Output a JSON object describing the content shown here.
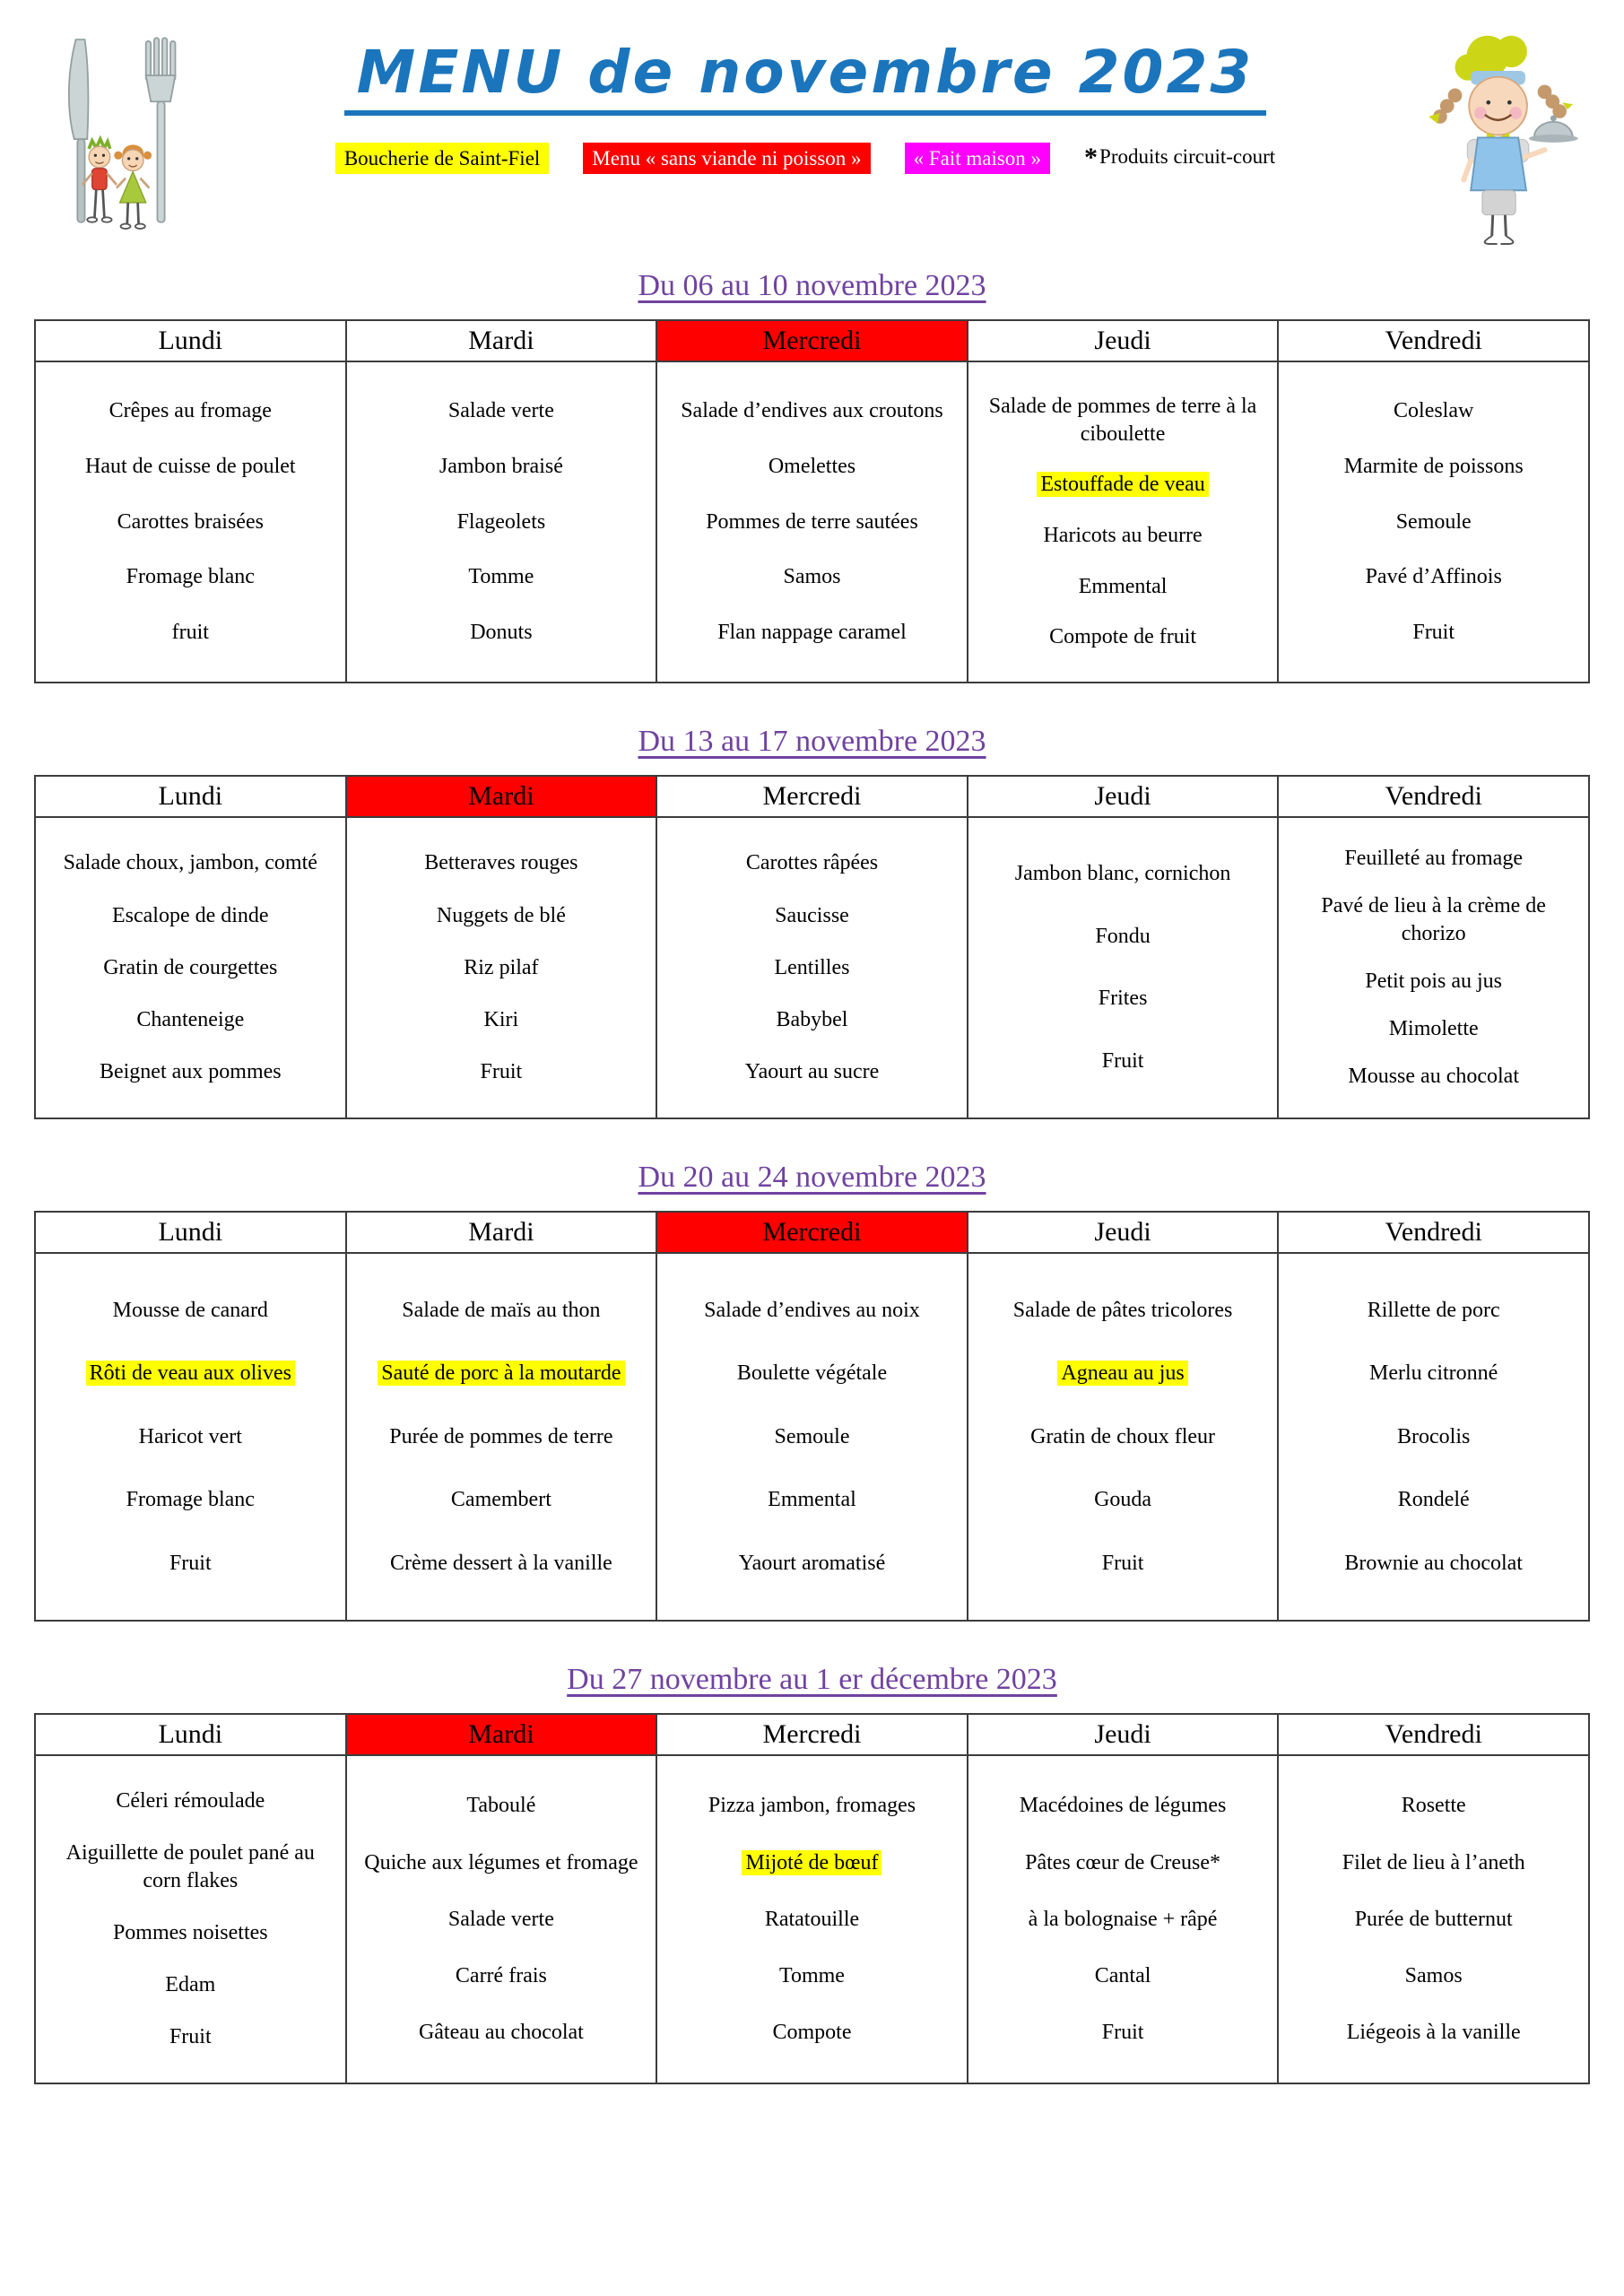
{
  "page": {
    "title": "MENU de novembre 2023",
    "illustrations": {
      "left": "kids-with-giant-cutlery",
      "right": "chef-girl-with-cloche"
    },
    "legend": [
      {
        "text": "Boucherie de Saint-Fiel",
        "style": "yellow"
      },
      {
        "text": "Menu « sans viande ni poisson »",
        "style": "red"
      },
      {
        "text": "« Fait maison »",
        "style": "magenta"
      },
      {
        "text": "Produits circuit-court",
        "style": "plain",
        "prefix": "*"
      }
    ],
    "colors": {
      "title_blue": "#1b75bc",
      "week_purple": "#7042a0",
      "flag_red": "#fe0000",
      "flag_magenta": "#ff00ff",
      "highlight_yellow": "#ffff00"
    }
  },
  "weeks": [
    {
      "title": "Du 06 au 10 novembre 2023",
      "days": [
        {
          "label": "Lundi",
          "header_red": false,
          "items": [
            {
              "text": "Crêpes au fromage"
            },
            {
              "text": "Haut de cuisse de poulet"
            },
            {
              "text": "Carottes braisées"
            },
            {
              "text": "Fromage blanc"
            },
            {
              "text": "fruit"
            }
          ]
        },
        {
          "label": "Mardi",
          "header_red": false,
          "items": [
            {
              "text": "Salade verte"
            },
            {
              "text": "Jambon braisé"
            },
            {
              "text": "Flageolets"
            },
            {
              "text": "Tomme"
            },
            {
              "text": "Donuts"
            }
          ]
        },
        {
          "label": "Mercredi",
          "header_red": true,
          "items": [
            {
              "text": "Salade d’endives aux croutons"
            },
            {
              "text": "Omelettes"
            },
            {
              "text": "Pommes de terre sautées"
            },
            {
              "text": "Samos"
            },
            {
              "text": "Flan nappage caramel"
            }
          ]
        },
        {
          "label": "Jeudi",
          "header_red": false,
          "items": [
            {
              "text": "Salade de pommes de terre à la ciboulette"
            },
            {
              "text": "Estouffade de veau",
              "highlight": true
            },
            {
              "text": "Haricots au beurre"
            },
            {
              "text": "Emmental"
            },
            {
              "text": "Compote de fruit"
            }
          ]
        },
        {
          "label": "Vendredi",
          "header_red": false,
          "items": [
            {
              "text": "Coleslaw"
            },
            {
              "text": "Marmite de poissons"
            },
            {
              "text": "Semoule"
            },
            {
              "text": "Pavé d’Affinois"
            },
            {
              "text": "Fruit"
            }
          ]
        }
      ]
    },
    {
      "title": "Du 13  au 17 novembre 2023",
      "days": [
        {
          "label": "Lundi",
          "header_red": false,
          "items": [
            {
              "text": "Salade choux, jambon, comté"
            },
            {
              "text": "Escalope de dinde"
            },
            {
              "text": "Gratin de courgettes"
            },
            {
              "text": "Chanteneige"
            },
            {
              "text": "Beignet aux pommes"
            }
          ]
        },
        {
          "label": "Mardi",
          "header_red": true,
          "items": [
            {
              "text": "Betteraves rouges"
            },
            {
              "text": "Nuggets de blé"
            },
            {
              "text": "Riz pilaf"
            },
            {
              "text": "Kiri"
            },
            {
              "text": "Fruit"
            }
          ]
        },
        {
          "label": "Mercredi",
          "header_red": false,
          "items": [
            {
              "text": "Carottes râpées"
            },
            {
              "text": "Saucisse"
            },
            {
              "text": "Lentilles"
            },
            {
              "text": "Babybel"
            },
            {
              "text": "Yaourt au sucre"
            }
          ]
        },
        {
          "label": "Jeudi",
          "header_red": false,
          "items": [
            {
              "text": "Jambon blanc, cornichon"
            },
            {
              "text": "Fondu"
            },
            {
              "text": "Frites"
            },
            {
              "text": "Fruit"
            }
          ]
        },
        {
          "label": "Vendredi",
          "header_red": false,
          "items": [
            {
              "text": "Feuilleté au fromage"
            },
            {
              "text": "Pavé de lieu à la crème de chorizo"
            },
            {
              "text": "Petit pois au jus"
            },
            {
              "text": "Mimolette"
            },
            {
              "text": "Mousse au chocolat"
            }
          ]
        }
      ]
    },
    {
      "title": "Du 20 au 24 novembre 2023",
      "days": [
        {
          "label": "Lundi",
          "header_red": false,
          "items": [
            {
              "text": "Mousse de canard"
            },
            {
              "text": "Rôti de veau aux olives",
              "highlight": true
            },
            {
              "text": "Haricot vert"
            },
            {
              "text": "Fromage blanc"
            },
            {
              "text": "Fruit"
            }
          ]
        },
        {
          "label": "Mardi",
          "header_red": false,
          "items": [
            {
              "text": "Salade de maïs au thon"
            },
            {
              "text": "Sauté de porc à la moutarde",
              "highlight": true
            },
            {
              "text": "Purée de pommes de terre"
            },
            {
              "text": "Camembert"
            },
            {
              "text": "Crème dessert à la vanille"
            }
          ]
        },
        {
          "label": "Mercredi",
          "header_red": true,
          "items": [
            {
              "text": "Salade d’endives au noix"
            },
            {
              "text": "Boulette végétale"
            },
            {
              "text": "Semoule"
            },
            {
              "text": "Emmental"
            },
            {
              "text": "Yaourt aromatisé"
            }
          ]
        },
        {
          "label": "Jeudi",
          "header_red": false,
          "items": [
            {
              "text": "Salade de pâtes tricolores"
            },
            {
              "text": "Agneau au jus",
              "highlight": true
            },
            {
              "text": "Gratin de choux fleur"
            },
            {
              "text": "Gouda"
            },
            {
              "text": "Fruit"
            }
          ]
        },
        {
          "label": "Vendredi",
          "header_red": false,
          "items": [
            {
              "text": "Rillette de porc"
            },
            {
              "text": "Merlu citronné"
            },
            {
              "text": "Brocolis"
            },
            {
              "text": "Rondelé"
            },
            {
              "text": "Brownie au chocolat"
            }
          ]
        }
      ]
    },
    {
      "title": "Du 27 novembre  au 1 er décembre 2023",
      "days": [
        {
          "label": "Lundi",
          "header_red": false,
          "items": [
            {
              "text": "Céleri rémoulade"
            },
            {
              "text": "Aiguillette de poulet pané au corn flakes"
            },
            {
              "text": "Pommes noisettes"
            },
            {
              "text": "Edam"
            },
            {
              "text": "Fruit"
            }
          ]
        },
        {
          "label": "Mardi",
          "header_red": true,
          "items": [
            {
              "text": "Taboulé"
            },
            {
              "text": "Quiche aux légumes et fromage"
            },
            {
              "text": "Salade verte"
            },
            {
              "text": "Carré frais"
            },
            {
              "text": "Gâteau au chocolat"
            }
          ]
        },
        {
          "label": "Mercredi",
          "header_red": false,
          "items": [
            {
              "text": "Pizza jambon, fromages"
            },
            {
              "text": "Mijoté de bœuf",
              "highlight": true
            },
            {
              "text": "Ratatouille"
            },
            {
              "text": "Tomme"
            },
            {
              "text": "Compote"
            }
          ]
        },
        {
          "label": "Jeudi",
          "header_red": false,
          "items": [
            {
              "text": "Macédoines de légumes"
            },
            {
              "text": "Pâtes cœur de Creuse*"
            },
            {
              "text": "à la bolognaise + râpé"
            },
            {
              "text": "Cantal"
            },
            {
              "text": "Fruit"
            }
          ]
        },
        {
          "label": "Vendredi",
          "header_red": false,
          "items": [
            {
              "text": "Rosette"
            },
            {
              "text": "Filet de lieu à l’aneth"
            },
            {
              "text": "Purée de butternut"
            },
            {
              "text": "Samos"
            },
            {
              "text": "Liégeois à la vanille"
            }
          ]
        }
      ]
    }
  ]
}
